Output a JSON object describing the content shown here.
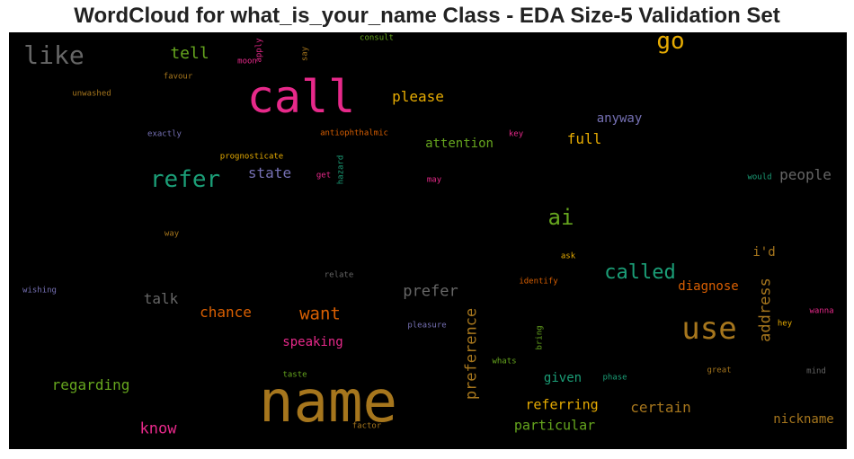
{
  "chart_data": {
    "type": "wordcloud",
    "title": "WordCloud for what_is_your_name Class - EDA Size-5 Validation Set",
    "background": "#000000",
    "colormap": "Dark2",
    "words": [
      {
        "text": "name",
        "color": "#a6761d"
      },
      {
        "text": "call",
        "color": "#e7298a"
      },
      {
        "text": "use",
        "color": "#a6761d"
      },
      {
        "text": "go",
        "color": "#e6ab02"
      },
      {
        "text": "like",
        "color": "#666666"
      },
      {
        "text": "refer",
        "color": "#1b9e77"
      },
      {
        "text": "ai",
        "color": "#66a61e"
      },
      {
        "text": "called",
        "color": "#1b9e77"
      },
      {
        "text": "want",
        "color": "#d95f02"
      },
      {
        "text": "preference",
        "color": "#a6761d"
      },
      {
        "text": "address",
        "color": "#a6761d"
      },
      {
        "text": "tell",
        "color": "#66a61e"
      },
      {
        "text": "please",
        "color": "#e6ab02"
      },
      {
        "text": "state",
        "color": "#7570b3"
      },
      {
        "text": "full",
        "color": "#e6ab02"
      },
      {
        "text": "people",
        "color": "#666666"
      },
      {
        "text": "prefer",
        "color": "#666666"
      },
      {
        "text": "talk",
        "color": "#666666"
      },
      {
        "text": "chance",
        "color": "#d95f02"
      },
      {
        "text": "regarding",
        "color": "#66a61e"
      },
      {
        "text": "know",
        "color": "#e7298a"
      },
      {
        "text": "certain",
        "color": "#a6761d"
      },
      {
        "text": "nickname",
        "color": "#a6761d"
      },
      {
        "text": "referring",
        "color": "#e6ab02"
      },
      {
        "text": "particular",
        "color": "#66a61e"
      },
      {
        "text": "attention",
        "color": "#66a61e"
      },
      {
        "text": "anyway",
        "color": "#7570b3"
      },
      {
        "text": "speaking",
        "color": "#e7298a"
      },
      {
        "text": "diagnose",
        "color": "#d95f02"
      },
      {
        "text": "given",
        "color": "#1b9e77"
      },
      {
        "text": "i'd",
        "color": "#a6761d"
      },
      {
        "text": "consult",
        "color": "#66a61e"
      },
      {
        "text": "unwashed",
        "color": "#a6761d"
      },
      {
        "text": "favour",
        "color": "#a6761d"
      },
      {
        "text": "exactly",
        "color": "#7570b3"
      },
      {
        "text": "prognosticate",
        "color": "#e6ab02"
      },
      {
        "text": "antiophthalmic",
        "color": "#d95f02"
      },
      {
        "text": "key",
        "color": "#e7298a"
      },
      {
        "text": "get",
        "color": "#e7298a"
      },
      {
        "text": "hazard",
        "color": "#1b9e77"
      },
      {
        "text": "may",
        "color": "#e7298a"
      },
      {
        "text": "would",
        "color": "#1b9e77"
      },
      {
        "text": "way",
        "color": "#a6761d"
      },
      {
        "text": "ask",
        "color": "#e6ab02"
      },
      {
        "text": "relate",
        "color": "#666666"
      },
      {
        "text": "identify",
        "color": "#d95f02"
      },
      {
        "text": "wishing",
        "color": "#7570b3"
      },
      {
        "text": "pleasure",
        "color": "#7570b3"
      },
      {
        "text": "bring",
        "color": "#66a61e"
      },
      {
        "text": "whats",
        "color": "#66a61e"
      },
      {
        "text": "wanna",
        "color": "#e7298a"
      },
      {
        "text": "hey",
        "color": "#e6ab02"
      },
      {
        "text": "taste",
        "color": "#66a61e"
      },
      {
        "text": "phase",
        "color": "#1b9e77"
      },
      {
        "text": "great",
        "color": "#a6761d"
      },
      {
        "text": "mind",
        "color": "#666666"
      },
      {
        "text": "factor",
        "color": "#a6761d"
      },
      {
        "text": "moon",
        "color": "#e7298a"
      },
      {
        "text": "apply",
        "color": "#e7298a"
      },
      {
        "text": "say",
        "color": "#a6761d"
      }
    ]
  }
}
